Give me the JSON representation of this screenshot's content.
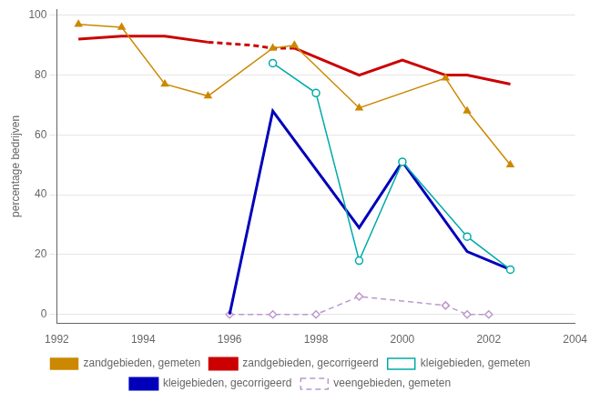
{
  "chart_data": {
    "type": "line",
    "ylabel": "percentage bedrijven",
    "xlim": [
      1992,
      2004
    ],
    "xticks": [
      1992,
      1994,
      1996,
      1998,
      2000,
      2002,
      2004
    ],
    "ylim": [
      -3,
      102
    ],
    "yticks": [
      0,
      20,
      40,
      60,
      80,
      100
    ],
    "grid": "y",
    "legend": "bottom",
    "series": [
      {
        "name": "zandgebieden, gemeten",
        "color": "#cc8800",
        "marker": "triangle",
        "line_style": "solid",
        "x": [
          1992.5,
          1993.5,
          1994.5,
          1995.5,
          1997,
          1997.5,
          1999,
          2001,
          2001.5,
          2002.5
        ],
        "values": [
          97,
          96,
          77,
          73,
          89,
          90,
          69,
          79,
          68,
          50
        ]
      },
      {
        "name": "zandgebieden, gecorrigeerd",
        "color": "#cc0000",
        "line_style": "solid",
        "x": [
          1992.5,
          1993.5,
          1994.5,
          1995.5
        ],
        "values": [
          92,
          93,
          93,
          91
        ]
      },
      {
        "name": "zandgebieden, gecorrigeerd",
        "color": "#cc0000",
        "line_style": "dashed",
        "x": [
          1995.5,
          1996.5,
          1997,
          1997.5
        ],
        "values": [
          91,
          90,
          89,
          89
        ]
      },
      {
        "name": "zandgebieden, gecorrigeerd",
        "color": "#cc0000",
        "line_style": "solid",
        "x": [
          1997.5,
          1999,
          2000,
          2001,
          2001.5,
          2002.5
        ],
        "values": [
          89,
          80,
          85,
          80,
          80,
          77
        ]
      },
      {
        "name": "kleigebieden, gemeten",
        "color": "#00aaaa",
        "marker": "circle",
        "line_style": "solid",
        "x": [
          1997,
          1998,
          1999,
          2000,
          2001.5,
          2002.5
        ],
        "values": [
          84,
          74,
          18,
          51,
          26,
          15
        ]
      },
      {
        "name": "kleigebieden, gecorrigeerd",
        "color": "#0000bb",
        "line_style": "solid",
        "x": [
          1996,
          1997,
          1999,
          2000,
          2001.5,
          2002.5
        ],
        "values": [
          0,
          68,
          29,
          51,
          21,
          15
        ]
      },
      {
        "name": "veengebieden, gemeten",
        "color": "#bb99cc",
        "marker": "diamond",
        "line_style": "dashed",
        "x": [
          1996,
          1997,
          1998,
          1999,
          2001,
          2001.5,
          2002
        ],
        "values": [
          0,
          0,
          0,
          6,
          3,
          0,
          0
        ]
      }
    ]
  }
}
